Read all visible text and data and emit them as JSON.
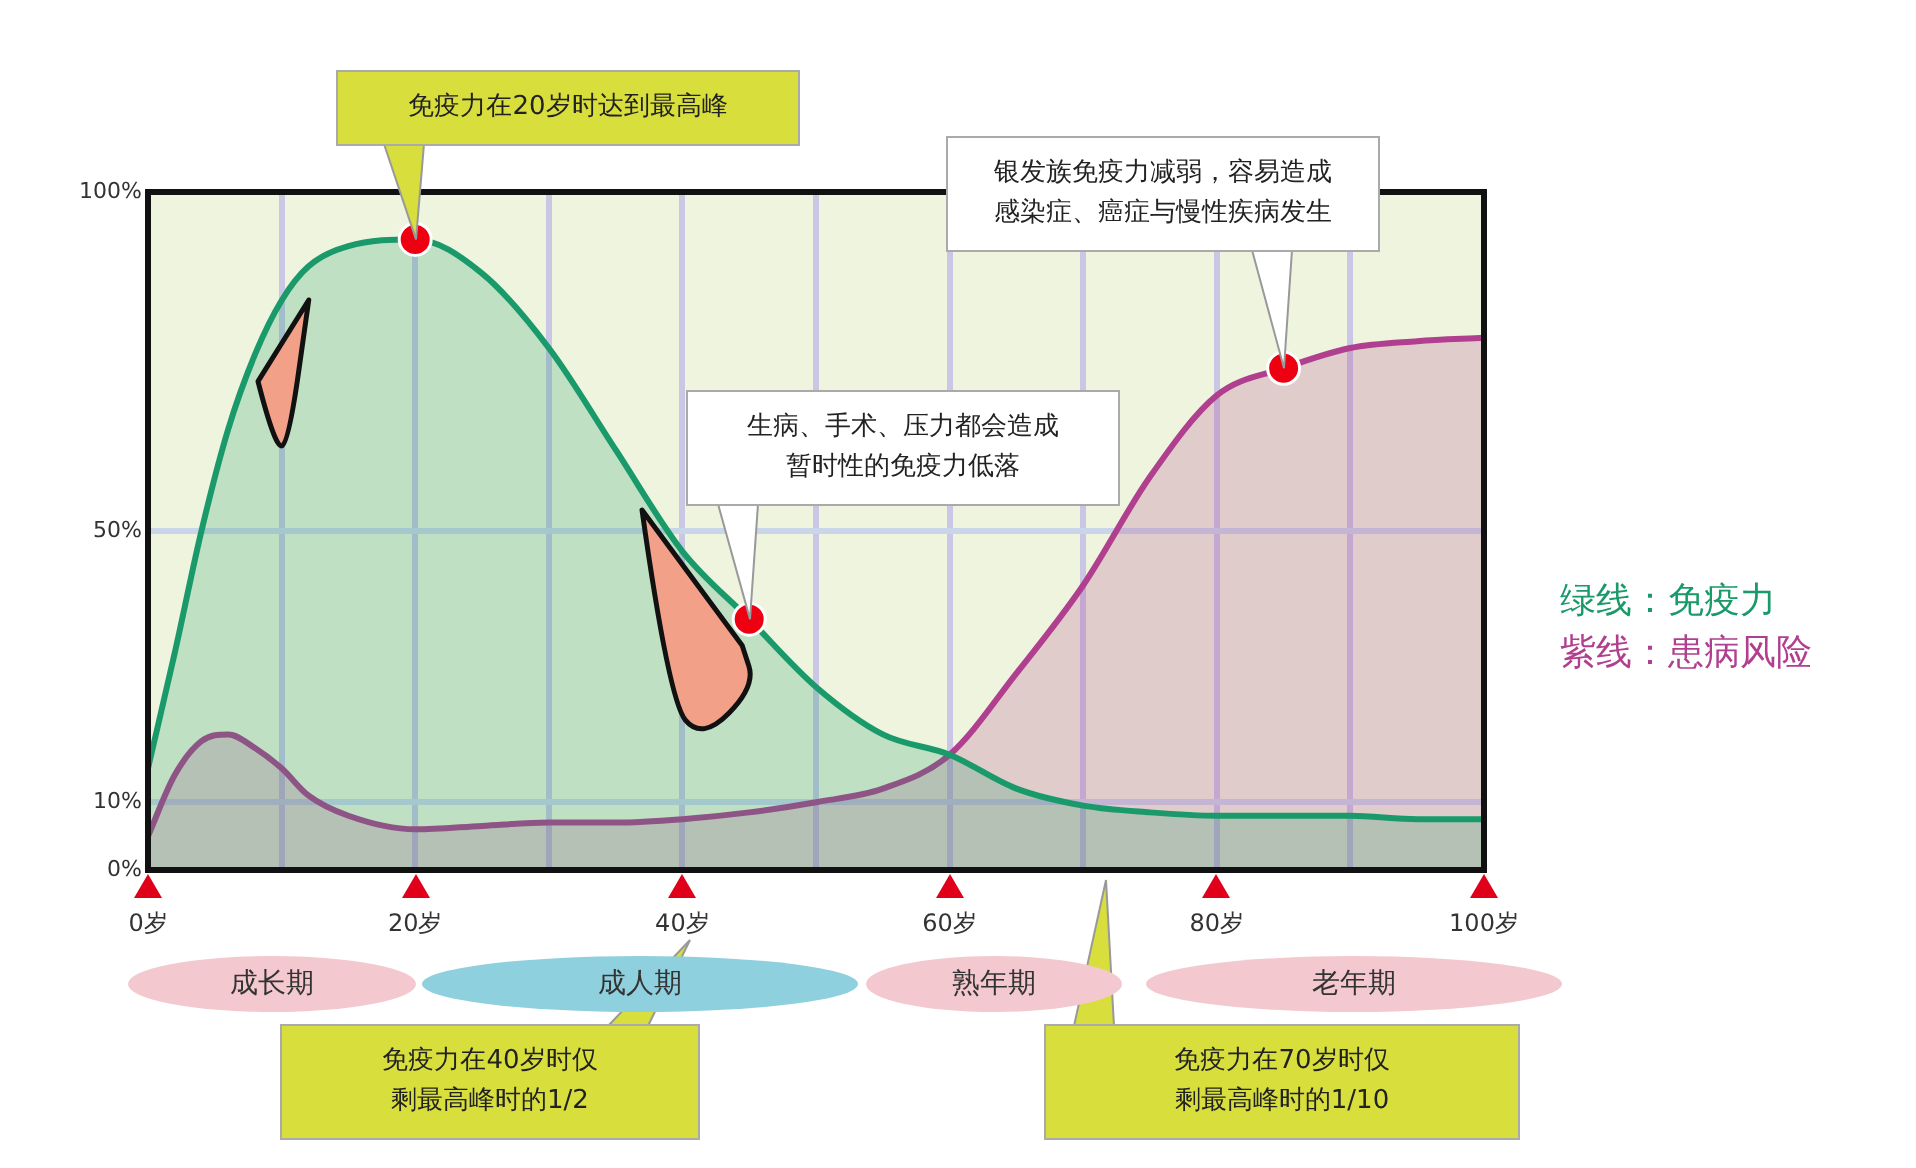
{
  "chart_data": {
    "type": "area",
    "x": [
      0,
      2,
      4,
      6,
      8,
      10,
      12,
      15,
      20,
      25,
      30,
      35,
      40,
      45,
      50,
      55,
      60,
      65,
      70,
      75,
      80,
      85,
      90,
      95,
      100
    ],
    "series": [
      {
        "name": "绿线：免疫力",
        "color": "#1a9a6a",
        "values": [
          15,
          32,
          50,
          65,
          76,
          84,
          89,
          92,
          93,
          88,
          77,
          62,
          47,
          37,
          27,
          20,
          17,
          12,
          9.5,
          8.5,
          8,
          8,
          8,
          7.5,
          7.5
        ]
      },
      {
        "name": "紫线：患病风险",
        "color": "#b0408f",
        "values": [
          5,
          14,
          19,
          20,
          18,
          15,
          11,
          8,
          6,
          6.5,
          7,
          7,
          7.5,
          8.5,
          10,
          12,
          17,
          29,
          42,
          58,
          70,
          74,
          77,
          78,
          78.5
        ]
      }
    ],
    "xlim": [
      0,
      100
    ],
    "xticks": [
      {
        "value": 0,
        "label": "0岁"
      },
      {
        "value": 10,
        "label": null
      },
      {
        "value": 20,
        "label": "20岁"
      },
      {
        "value": 30,
        "label": null
      },
      {
        "value": 40,
        "label": "40岁"
      },
      {
        "value": 50,
        "label": null
      },
      {
        "value": 60,
        "label": "60岁"
      },
      {
        "value": 70,
        "label": null
      },
      {
        "value": 80,
        "label": "80岁"
      },
      {
        "value": 90,
        "label": null
      },
      {
        "value": 100,
        "label": "100岁"
      }
    ],
    "ylim": [
      0,
      100
    ],
    "yticks": [
      {
        "value": 0,
        "label": "0%"
      },
      {
        "value": 10,
        "label": "10%"
      },
      {
        "value": 50,
        "label": "50%"
      },
      {
        "value": 100,
        "label": "100%"
      }
    ],
    "grid": true,
    "legend": "right",
    "annotations": [
      {
        "text": "免疫力在20岁时达到最高峰",
        "x": 20,
        "y": 93
      },
      {
        "text": "生病、手术、压力都会造成暂时性的免疫力低落",
        "x": 45,
        "y": 37
      },
      {
        "text": "银发族免疫力减弱，容易造成感染症、癌症与慢性疾病发生",
        "x": 85,
        "y": 74
      },
      "成长期",
      "成人期",
      "熟年期",
      "老年期",
      "免疫力在40岁时仅剩最高峰时的1/2",
      "免疫力在70岁时仅剩最高峰时的1/10"
    ]
  }
}
